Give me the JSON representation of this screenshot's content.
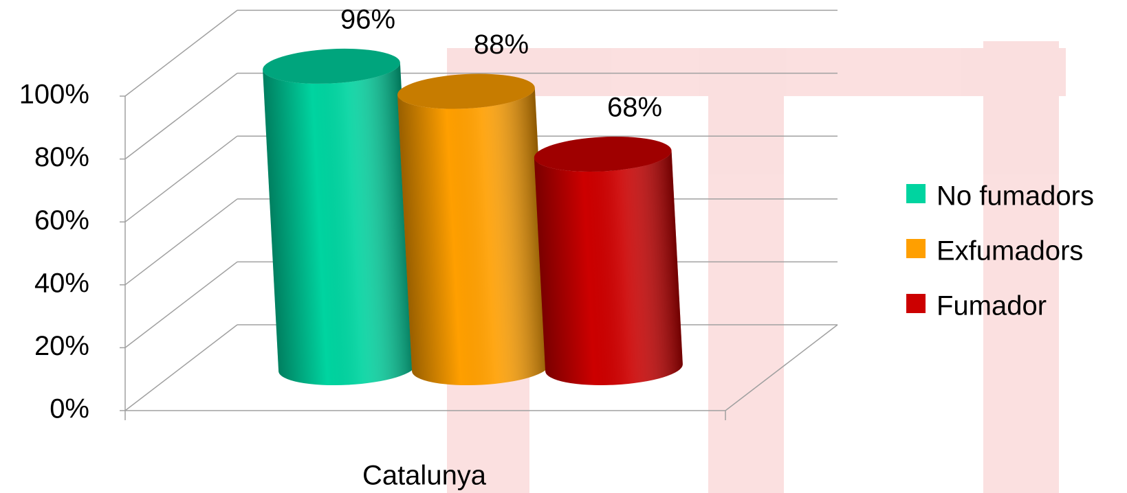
{
  "chart_data": {
    "type": "bar3d",
    "categories": [
      "Catalunya"
    ],
    "series": [
      {
        "name": "No fumadors",
        "color": "#00d4a0",
        "values": [
          96
        ],
        "value_labels": [
          "96%"
        ]
      },
      {
        "name": "Exfumadors",
        "color": "#ff9f00",
        "values": [
          88
        ],
        "value_labels": [
          "88%"
        ]
      },
      {
        "name": "Fumador",
        "color": "#cc0000",
        "values": [
          68
        ],
        "value_labels": [
          "68%"
        ]
      }
    ],
    "ylim": [
      0,
      100
    ],
    "yticks": [
      {
        "value": 0,
        "label": "0%"
      },
      {
        "value": 20,
        "label": "20%"
      },
      {
        "value": 40,
        "label": "40%"
      },
      {
        "value": 60,
        "label": "60%"
      },
      {
        "value": 80,
        "label": "80%"
      },
      {
        "value": 100,
        "label": "100%"
      }
    ],
    "grid": true,
    "legend": "right"
  }
}
